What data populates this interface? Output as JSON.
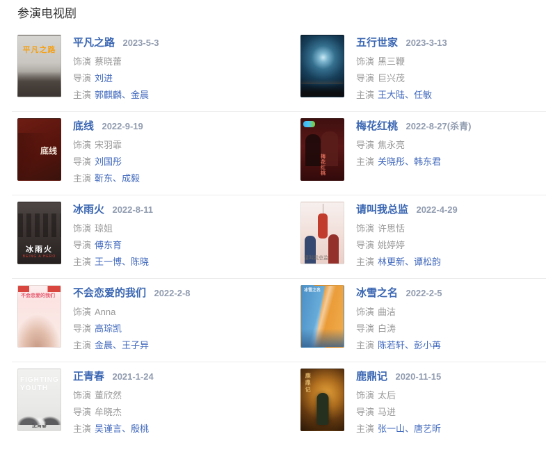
{
  "header": {
    "title": "参演电视剧"
  },
  "ui": {
    "role_label": "饰演",
    "director_label": "导演",
    "cast_label": "主演",
    "separator": "、"
  },
  "colors": {
    "title_link": "#3a66b2",
    "inline_link": "#4169bd",
    "date_text": "#919cb0",
    "label_gray": "#999999",
    "divider": "#ececec"
  },
  "dramas": [
    {
      "title": "平凡之路",
      "date": "2023-5-3",
      "role": "蔡晓蕾",
      "director": "刘进",
      "director_is_link": true,
      "cast": [
        "郭麒麟",
        "金晨"
      ],
      "poster": {
        "text": "平凡之路"
      }
    },
    {
      "title": "五行世家",
      "date": "2023-3-13",
      "role": "黑三鞭",
      "director": "巨兴茂",
      "director_is_link": false,
      "cast": [
        "王大陆",
        "任敏"
      ]
    },
    {
      "title": "底线",
      "date": "2022-9-19",
      "role": "宋羽霏",
      "director": "刘国彤",
      "director_is_link": true,
      "cast": [
        "靳东",
        "成毅"
      ],
      "poster": {
        "text": "底线"
      }
    },
    {
      "title": "梅花红桃",
      "date": "2022-8-27(杀青)",
      "director": "焦永亮",
      "director_is_link": false,
      "cast": [
        "关晓彤",
        "韩东君"
      ],
      "poster": {
        "text": "梅花红桃"
      }
    },
    {
      "title": "冰雨火",
      "date": "2022-8-11",
      "role": "琼姐",
      "director": "傅东育",
      "director_is_link": true,
      "cast": [
        "王一博",
        "陈晓"
      ],
      "poster": {
        "text": "冰雨火",
        "subtext": "BEING A HERO"
      }
    },
    {
      "title": "请叫我总监",
      "date": "2022-4-29",
      "role": "许思恬",
      "director": "姚婷婷",
      "director_is_link": false,
      "cast": [
        "林更新",
        "谭松韵"
      ],
      "poster": {
        "text": "请叫我总监"
      }
    },
    {
      "title": "不会恋爱的我们",
      "date": "2022-2-8",
      "role": "Anna",
      "director": "高琮凯",
      "director_is_link": true,
      "cast": [
        "金晨",
        "王子异"
      ],
      "poster": {
        "text": "不会恋爱的我们"
      }
    },
    {
      "title": "冰雪之名",
      "date": "2022-2-5",
      "role": "曲洁",
      "director": "白涛",
      "director_is_link": false,
      "cast": [
        "陈若轩",
        "彭小苒"
      ],
      "poster": {
        "text": "冰雪之名"
      }
    },
    {
      "title": "正青春",
      "date": "2021-1-24",
      "role": "董欣然",
      "director": "牟晓杰",
      "director_is_link": false,
      "cast": [
        "吴谨言",
        "殷桃"
      ],
      "poster": {
        "text": "FIGHTING YOUTH",
        "subtext": "正青春"
      }
    },
    {
      "title": "鹿鼎记",
      "date": "2020-11-15",
      "role": "太后",
      "director": "马进",
      "director_is_link": false,
      "cast": [
        "张一山",
        "唐艺昕"
      ],
      "poster": {
        "text": "鹿鼎记"
      }
    }
  ]
}
